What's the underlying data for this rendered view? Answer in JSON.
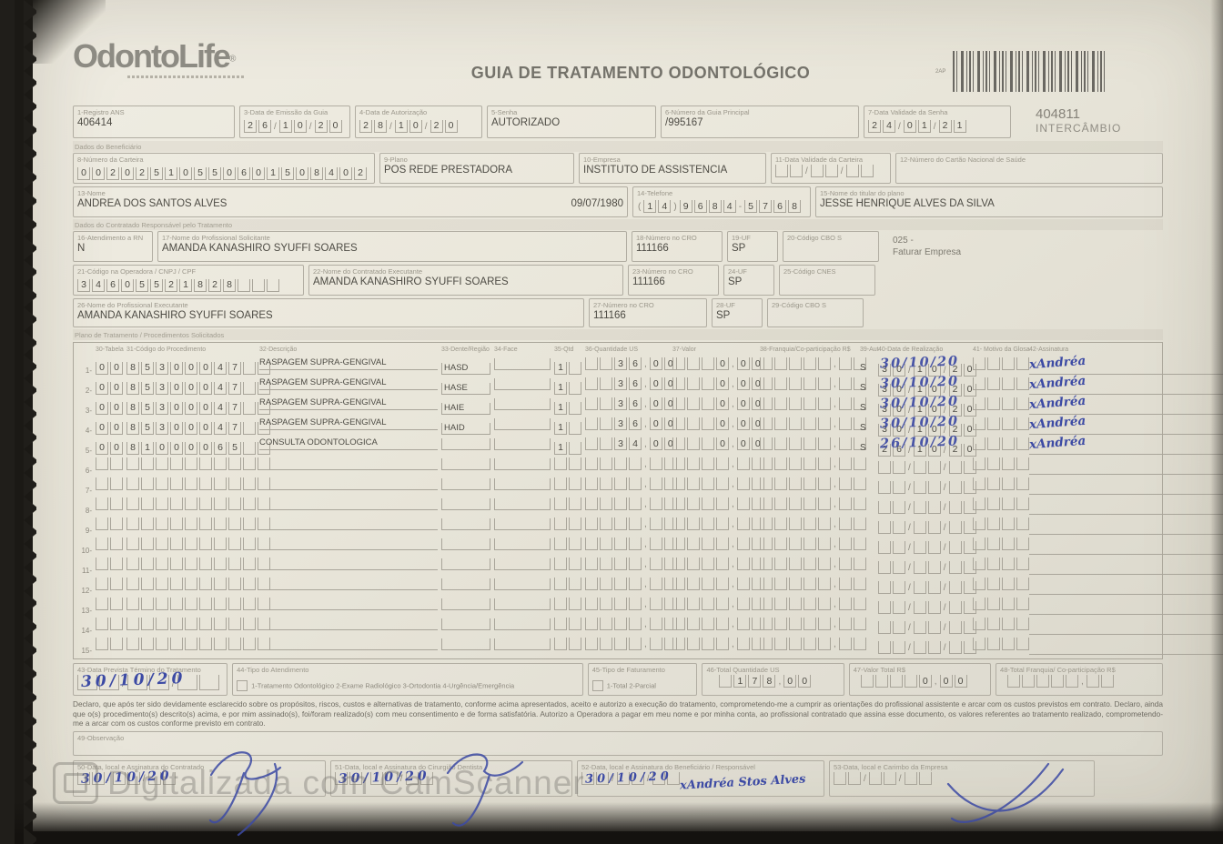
{
  "scan": {
    "watermark_text": "Digitalizada com CamScanner"
  },
  "header": {
    "logo": "OdontoLife",
    "logo_mark": "®",
    "title": "GUIA DE TRATAMENTO ODONTOLÓGICO",
    "barcode_tag": "2AP",
    "guide_number": "404811",
    "guide_type": "INTERCÂMBIO"
  },
  "sections": {
    "beneficiary": "Dados do Beneficiário",
    "provider": "Dados do Contratado Responsável pelo Tratamento",
    "plan": "Plano de Tratamento / Procedimentos Solicitados"
  },
  "billing_note": "025 -\nFaturar Empresa",
  "fields": {
    "f1": {
      "label": "1-Registro ANS",
      "value": "406414"
    },
    "f3": {
      "label": "3-Data de Emissão da Guia",
      "value": "26/10/20"
    },
    "f4": {
      "label": "4-Data de Autorização",
      "value": "28/10/20"
    },
    "f5": {
      "label": "5-Senha",
      "value": "AUTORIZADO"
    },
    "f6": {
      "label": "6-Número da Guia Principal",
      "value": "/995167"
    },
    "f7": {
      "label": "7-Data Validade da Senha",
      "value": "24/01/21"
    },
    "f8": {
      "label": "8-Número da Carteira",
      "value": "00202510550601508402"
    },
    "f9": {
      "label": "9-Plano",
      "value": "POS REDE PRESTADORA"
    },
    "f10": {
      "label": "10-Empresa",
      "value": "INSTITUTO DE ASSISTENCIA"
    },
    "f11": {
      "label": "11-Data Validade da Carteira",
      "value": ""
    },
    "f12": {
      "label": "12-Número do Cartão Nacional de Saúde",
      "value": ""
    },
    "f13": {
      "label": "13-Nome",
      "value": "ANDREA DOS SANTOS ALVES",
      "value2": "09/07/1980"
    },
    "f14": {
      "label": "14-Telefone",
      "value": "(14)9684-5768"
    },
    "f15": {
      "label": "15-Nome do titular do plano",
      "value": "JESSE HENRIQUE ALVES DA SILVA"
    },
    "f16": {
      "label": "16-Atendimento a RN",
      "value": "N"
    },
    "f17": {
      "label": "17-Nome do Profissional Solicitante",
      "value": "AMANDA KANASHIRO SYUFFI SOARES"
    },
    "f18": {
      "label": "18-Número no CRO",
      "value": "111166"
    },
    "f19": {
      "label": "19-UF",
      "value": "SP"
    },
    "f20": {
      "label": "20-Código CBO S",
      "value": ""
    },
    "f21": {
      "label": "21-Código na Operadora / CNPJ / CPF",
      "value": "34605521828"
    },
    "f22": {
      "label": "22-Nome do Contratado Executante",
      "value": "AMANDA KANASHIRO SYUFFI SOARES"
    },
    "f23": {
      "label": "23-Número no CRO",
      "value": "111166"
    },
    "f24": {
      "label": "24-UF",
      "value": "SP"
    },
    "f25": {
      "label": "25-Código CNES",
      "value": ""
    },
    "f26": {
      "label": "26-Nome do Profissional Executante",
      "value": "AMANDA KANASHIRO SYUFFI SOARES"
    },
    "f27": {
      "label": "27-Número no CRO",
      "value": "111166"
    },
    "f28": {
      "label": "28-UF",
      "value": "SP"
    },
    "f29": {
      "label": "29-Código CBO S",
      "value": ""
    },
    "f43": {
      "label": "43-Data Prevista Término do Tratamento",
      "value": "30/10/20"
    },
    "f44": {
      "label": "44-Tipo do Atendimento",
      "options": "1-Tratamento Odontológico  2-Exame Radiológico  3-Ortodontia  4-Urgência/Emergência"
    },
    "f45": {
      "label": "45-Tipo de Faturamento",
      "options": "1-Total  2-Parcial"
    },
    "f46": {
      "label": "46-Total Quantidade US",
      "value": " 178,00"
    },
    "f47": {
      "label": "47-Valor Total R$",
      "value": "    0,00"
    },
    "f48": {
      "label": "48-Total Franquia/ Co-participação R$",
      "value": ""
    },
    "f49": {
      "label": "49-Observação",
      "value": ""
    },
    "f50": {
      "label": "50-Data, local e Assinatura do Contratado",
      "date": "30/10/20"
    },
    "f51": {
      "label": "51-Data, local e Assinatura do Cirurgião Dentista",
      "date": "30/10/20"
    },
    "f52": {
      "label": "52-Data, local e Assinatura do Beneficiário / Responsável",
      "date": "30/10/20",
      "signature": "xAndréa Stos Alves"
    },
    "f53": {
      "label": "53-Data, local e Carimbo da Empresa",
      "value": ""
    }
  },
  "declaration": "Declaro, que após ter sido devidamente esclarecido sobre os propósitos, riscos, custos e alternativas de tratamento, conforme acima apresentados, aceito e autorizo a execução do tratamento, comprometendo-me a cumprir as orientações do profissional assistente e arcar com os custos previstos em contrato. Declaro, ainda que o(s) procedimento(s) descrito(s) acima, e por mim assinado(s), foi/foram realizado(s) com meu consentimento e de forma satisfatória. Autorizo a Operadora a pagar em meu nome e por minha conta, ao profissional contratado que assina esse documento, os valores referentes ao tratamento realizado, comprometendo-me a arcar com os custos conforme previsto em contrato.",
  "treatment": {
    "headers": {
      "tabela": "30-Tabela",
      "codigo": "31-Código do Procedimento",
      "descricao": "32-Descrição",
      "dente": "33-Dente/Região",
      "face": "34-Face",
      "qtd": "35-Qtd",
      "qus": "36-Quantidade US",
      "valor": "37-Valor",
      "franquia": "38-Franquia/Co-participação R$",
      "aut": "39-Aut",
      "data": "40-Data de Realização",
      "glosa": "41- Motivo da Glosa",
      "assinatura": "42-Assinatura"
    },
    "rows": [
      {
        "n": "1-",
        "tabela": "00",
        "codigo": "85300047",
        "descricao": "RASPAGEM SUPRA-GENGIVAL",
        "dente": "HASD",
        "face": "",
        "qtd": "1",
        "qus": "  36,00",
        "valor": "   0,00",
        "franquia": "",
        "aut": "S",
        "data": "30/10/20",
        "glosa": "",
        "assinatura": "xAndréa"
      },
      {
        "n": "2-",
        "tabela": "00",
        "codigo": "85300047",
        "descricao": "RASPAGEM SUPRA-GENGIVAL",
        "dente": "HASE",
        "face": "",
        "qtd": "1",
        "qus": "  36,00",
        "valor": "   0,00",
        "franquia": "",
        "aut": "S",
        "data": "30/10/20",
        "glosa": "",
        "assinatura": "xAndréa"
      },
      {
        "n": "3-",
        "tabela": "00",
        "codigo": "85300047",
        "descricao": "RASPAGEM SUPRA-GENGIVAL",
        "dente": "HAIE",
        "face": "",
        "qtd": "1",
        "qus": "  36,00",
        "valor": "   0,00",
        "franquia": "",
        "aut": "S",
        "data": "30/10/20",
        "glosa": "",
        "assinatura": "xAndréa"
      },
      {
        "n": "4-",
        "tabela": "00",
        "codigo": "85300047",
        "descricao": "RASPAGEM SUPRA-GENGIVAL",
        "dente": "HAID",
        "face": "",
        "qtd": "1",
        "qus": "  36,00",
        "valor": "   0,00",
        "franquia": "",
        "aut": "S",
        "data": "30/10/20",
        "glosa": "",
        "assinatura": "xAndréa"
      },
      {
        "n": "5-",
        "tabela": "00",
        "codigo": "81000065",
        "descricao": "CONSULTA ODONTOLOGICA",
        "dente": "",
        "face": "",
        "qtd": "1",
        "qus": "  34,00",
        "valor": "   0,00",
        "franquia": "",
        "aut": "S",
        "data": "26/10/20",
        "glosa": "",
        "assinatura": "xAndréa"
      },
      {
        "n": "6-",
        "tabela": "",
        "codigo": "",
        "descricao": "",
        "dente": "",
        "face": "",
        "qtd": "",
        "qus": "",
        "valor": "",
        "franquia": "",
        "aut": "",
        "data": "",
        "glosa": "",
        "assinatura": ""
      },
      {
        "n": "7-",
        "tabela": "",
        "codigo": "",
        "descricao": "",
        "dente": "",
        "face": "",
        "qtd": "",
        "qus": "",
        "valor": "",
        "franquia": "",
        "aut": "",
        "data": "",
        "glosa": "",
        "assinatura": ""
      },
      {
        "n": "8-",
        "tabela": "",
        "codigo": "",
        "descricao": "",
        "dente": "",
        "face": "",
        "qtd": "",
        "qus": "",
        "valor": "",
        "franquia": "",
        "aut": "",
        "data": "",
        "glosa": "",
        "assinatura": ""
      },
      {
        "n": "9-",
        "tabela": "",
        "codigo": "",
        "descricao": "",
        "dente": "",
        "face": "",
        "qtd": "",
        "qus": "",
        "valor": "",
        "franquia": "",
        "aut": "",
        "data": "",
        "glosa": "",
        "assinatura": ""
      },
      {
        "n": "10-",
        "tabela": "",
        "codigo": "",
        "descricao": "",
        "dente": "",
        "face": "",
        "qtd": "",
        "qus": "",
        "valor": "",
        "franquia": "",
        "aut": "",
        "data": "",
        "glosa": "",
        "assinatura": ""
      },
      {
        "n": "11-",
        "tabela": "",
        "codigo": "",
        "descricao": "",
        "dente": "",
        "face": "",
        "qtd": "",
        "qus": "",
        "valor": "",
        "franquia": "",
        "aut": "",
        "data": "",
        "glosa": "",
        "assinatura": ""
      },
      {
        "n": "12-",
        "tabela": "",
        "codigo": "",
        "descricao": "",
        "dente": "",
        "face": "",
        "qtd": "",
        "qus": "",
        "valor": "",
        "franquia": "",
        "aut": "",
        "data": "",
        "glosa": "",
        "assinatura": ""
      },
      {
        "n": "13-",
        "tabela": "",
        "codigo": "",
        "descricao": "",
        "dente": "",
        "face": "",
        "qtd": "",
        "qus": "",
        "valor": "",
        "franquia": "",
        "aut": "",
        "data": "",
        "glosa": "",
        "assinatura": ""
      },
      {
        "n": "14-",
        "tabela": "",
        "codigo": "",
        "descricao": "",
        "dente": "",
        "face": "",
        "qtd": "",
        "qus": "",
        "valor": "",
        "franquia": "",
        "aut": "",
        "data": "",
        "glosa": "",
        "assinatura": ""
      },
      {
        "n": "15-",
        "tabela": "",
        "codigo": "",
        "descricao": "",
        "dente": "",
        "face": "",
        "qtd": "",
        "qus": "",
        "valor": "",
        "franquia": "",
        "aut": "",
        "data": "",
        "glosa": "",
        "assinatura": ""
      }
    ]
  }
}
